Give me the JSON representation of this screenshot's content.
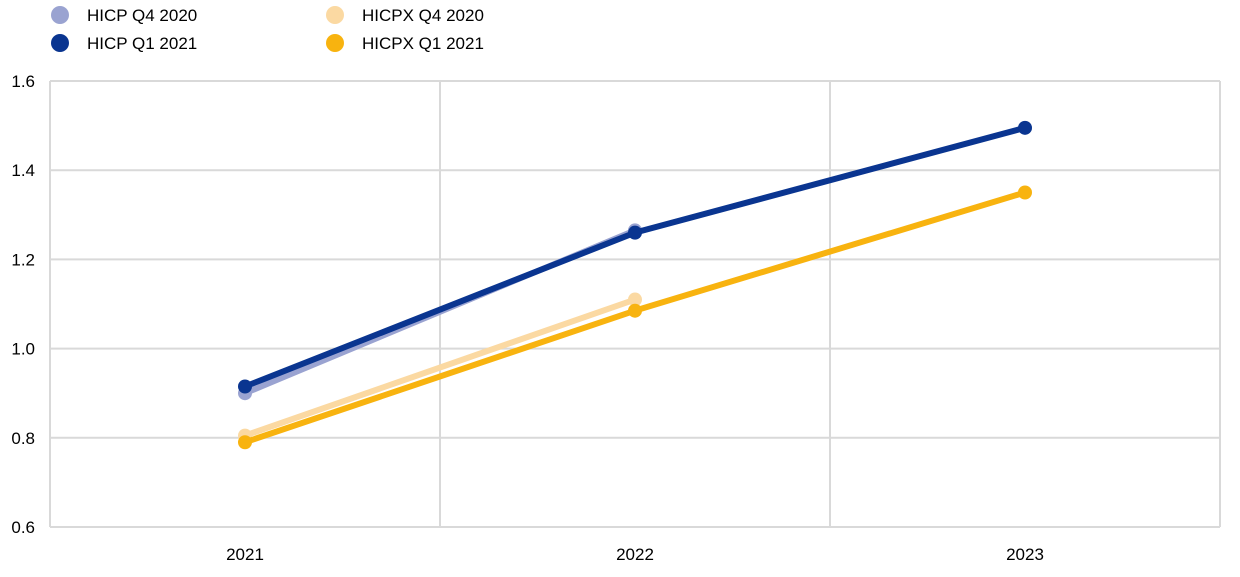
{
  "chart_data": {
    "type": "line",
    "x": [
      "2021",
      "2022",
      "2023"
    ],
    "ylim": [
      0.6,
      1.6
    ],
    "yticks": [
      "0.6",
      "0.8",
      "1.0",
      "1.2",
      "1.4",
      "1.6"
    ],
    "grid": true,
    "legend_position": "top-left",
    "series": [
      {
        "name": "HICP Q4 2020",
        "color": "#9aa3d1",
        "values": [
          0.9,
          1.265,
          null
        ]
      },
      {
        "name": "HICPX Q4 2020",
        "color": "#fbd9a2",
        "values": [
          0.805,
          1.11,
          null
        ]
      },
      {
        "name": "HICP Q1 2021",
        "color": "#0a3590",
        "values": [
          0.915,
          1.26,
          1.495
        ]
      },
      {
        "name": "HICPX Q1 2021",
        "color": "#f8b30f",
        "values": [
          0.79,
          1.085,
          1.35
        ]
      }
    ]
  }
}
